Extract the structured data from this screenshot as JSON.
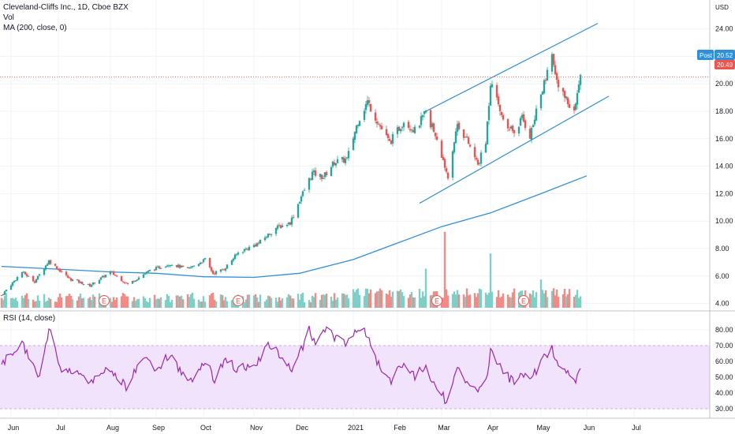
{
  "legend": {
    "main": "Cleveland-Cliffs Inc., 1D, Cboe BZX",
    "vol": "Vol",
    "ma": "MA (200, close, 0)",
    "rsi": "RSI (14, close)"
  },
  "price_axis": {
    "currency": "USD",
    "ticks": [
      "24.00",
      "22.00",
      "20.00",
      "18.00",
      "16.00",
      "14.00",
      "12.00",
      "10.00",
      "8.00",
      "6.00",
      "4.00"
    ],
    "tag_post_label": "Post",
    "tag_post_value": "20.52",
    "tag_last_value": "20.49"
  },
  "rsi_axis": {
    "ticks": [
      "80.00",
      "70.00",
      "60.00",
      "50.00",
      "40.00",
      "30.00"
    ]
  },
  "time_axis": {
    "labels": [
      "Jun",
      "Jul",
      "Aug",
      "Sep",
      "Oct",
      "Nov",
      "Dec",
      "2021",
      "Feb",
      "Mar",
      "Apr",
      "May",
      "Jun",
      "Jul"
    ]
  },
  "earnings_marker": "E",
  "colors": {
    "up": "#26a69a",
    "down": "#ef5350",
    "vol_up": "#7fcfc6",
    "vol_down": "#f28b87",
    "ma": "#2f8fd8",
    "channel": "#2f8fd8",
    "rsi": "#9c27b0",
    "rsi_band": "#f0e3fb",
    "price_tag": "#2f8fd8",
    "last_tag": "#ef5350"
  },
  "chart_data": {
    "type": "candlestick",
    "symbol": "Cleveland-Cliffs Inc.",
    "interval": "1D",
    "price_range": [
      3.3,
      24.8
    ],
    "rsi_range": [
      27,
      86
    ],
    "rsi_band": [
      30,
      70
    ],
    "last_price": 20.49,
    "post_price": 20.52,
    "anchors": [
      [
        "2020-05-26",
        4.6
      ],
      [
        "2020-06-08",
        6.3
      ],
      [
        "2020-06-16",
        5.6
      ],
      [
        "2020-06-25",
        7.1
      ],
      [
        "2020-07-08",
        5.8
      ],
      [
        "2020-07-21",
        5.3
      ],
      [
        "2020-08-03",
        6.3
      ],
      [
        "2020-08-14",
        5.4
      ],
      [
        "2020-08-28",
        6.4
      ],
      [
        "2020-09-10",
        6.9
      ],
      [
        "2020-09-21",
        6.5
      ],
      [
        "2020-10-02",
        7.2
      ],
      [
        "2020-10-07",
        6.2
      ],
      [
        "2020-10-14",
        6.5
      ],
      [
        "2020-10-23",
        7.7
      ],
      [
        "2020-11-05",
        8.4
      ],
      [
        "2020-11-16",
        9.5
      ],
      [
        "2020-11-25",
        9.9
      ],
      [
        "2020-12-02",
        11.8
      ],
      [
        "2020-12-09",
        13.5
      ],
      [
        "2020-12-16",
        13.2
      ],
      [
        "2020-12-23",
        14.3
      ],
      [
        "2020-12-31",
        14.5
      ],
      [
        "2021-01-07",
        17.3
      ],
      [
        "2021-01-13",
        18.7
      ],
      [
        "2021-01-20",
        17.1
      ],
      [
        "2021-01-27",
        15.7
      ],
      [
        "2021-02-05",
        17.3
      ],
      [
        "2021-02-12",
        16.6
      ],
      [
        "2021-02-19",
        17.9
      ],
      [
        "2021-02-24",
        16.6
      ],
      [
        "2021-03-02",
        14.3
      ],
      [
        "2021-03-05",
        13.3
      ],
      [
        "2021-03-11",
        17.1
      ],
      [
        "2021-03-17",
        15.9
      ],
      [
        "2021-03-24",
        14.1
      ],
      [
        "2021-03-29",
        15.7
      ],
      [
        "2021-04-01",
        20.1
      ],
      [
        "2021-04-08",
        17.7
      ],
      [
        "2021-04-16",
        16.4
      ],
      [
        "2021-04-21",
        17.5
      ],
      [
        "2021-04-26",
        16.2
      ],
      [
        "2021-05-03",
        19.2
      ],
      [
        "2021-05-10",
        21.9
      ],
      [
        "2021-05-14",
        19.6
      ],
      [
        "2021-05-19",
        18.9
      ],
      [
        "2021-05-24",
        17.9
      ],
      [
        "2021-05-28",
        20.49
      ]
    ],
    "moving_average_200": [
      [
        "2020-05-26",
        6.7
      ],
      [
        "2020-07-01",
        6.5
      ],
      [
        "2020-08-03",
        6.3
      ],
      [
        "2020-09-01",
        6.2
      ],
      [
        "2020-10-01",
        5.95
      ],
      [
        "2020-11-02",
        5.9
      ],
      [
        "2020-12-01",
        6.2
      ],
      [
        "2021-01-04",
        7.2
      ],
      [
        "2021-02-01",
        8.4
      ],
      [
        "2021-03-01",
        9.6
      ],
      [
        "2021-04-01",
        10.6
      ],
      [
        "2021-05-03",
        12.0
      ],
      [
        "2021-06-01",
        13.3
      ]
    ],
    "channel_upper": [
      [
        "2021-02-19",
        18.0
      ],
      [
        "2021-06-08",
        24.4
      ]
    ],
    "channel_lower": [
      [
        "2021-02-15",
        11.3
      ],
      [
        "2021-06-15",
        19.1
      ]
    ],
    "volume_spikes_millions": [
      [
        "2021-02-19",
        18
      ],
      [
        "2021-03-03",
        35
      ],
      [
        "2021-04-01",
        25
      ],
      [
        "2021-05-03",
        13
      ]
    ],
    "earnings_dates": [
      "2020-07-30",
      "2020-10-23",
      "2021-02-26",
      "2021-04-22"
    ],
    "rsi_anchors": [
      [
        "2020-05-26",
        58
      ],
      [
        "2020-06-08",
        72
      ],
      [
        "2020-06-18",
        49
      ],
      [
        "2020-06-25",
        81
      ],
      [
        "2020-07-03",
        52
      ],
      [
        "2020-07-10",
        55
      ],
      [
        "2020-07-23",
        47
      ],
      [
        "2020-08-03",
        56
      ],
      [
        "2020-08-13",
        44
      ],
      [
        "2020-08-25",
        64
      ],
      [
        "2020-09-02",
        54
      ],
      [
        "2020-09-10",
        66
      ],
      [
        "2020-09-21",
        45
      ],
      [
        "2020-10-02",
        61
      ],
      [
        "2020-10-08",
        49
      ],
      [
        "2020-10-15",
        62
      ],
      [
        "2020-10-22",
        55
      ],
      [
        "2020-11-04",
        58
      ],
      [
        "2020-11-10",
        73
      ],
      [
        "2020-11-17",
        65
      ],
      [
        "2020-11-27",
        55
      ],
      [
        "2020-12-07",
        80
      ],
      [
        "2020-12-11",
        70
      ],
      [
        "2020-12-18",
        82
      ],
      [
        "2020-12-23",
        75
      ],
      [
        "2020-12-30",
        72
      ],
      [
        "2021-01-08",
        82
      ],
      [
        "2021-01-14",
        75
      ],
      [
        "2021-01-21",
        55
      ],
      [
        "2021-01-28",
        47
      ],
      [
        "2021-02-05",
        60
      ],
      [
        "2021-02-12",
        50
      ],
      [
        "2021-02-18",
        57
      ],
      [
        "2021-02-25",
        44
      ],
      [
        "2021-03-04",
        35
      ],
      [
        "2021-03-11",
        57
      ],
      [
        "2021-03-16",
        47
      ],
      [
        "2021-03-24",
        42
      ],
      [
        "2021-03-30",
        53
      ],
      [
        "2021-04-01",
        68
      ],
      [
        "2021-04-08",
        55
      ],
      [
        "2021-04-16",
        46
      ],
      [
        "2021-04-22",
        52
      ],
      [
        "2021-04-26",
        47
      ],
      [
        "2021-05-04",
        62
      ],
      [
        "2021-05-10",
        68
      ],
      [
        "2021-05-14",
        55
      ],
      [
        "2021-05-19",
        53
      ],
      [
        "2021-05-24",
        46
      ],
      [
        "2021-05-28",
        58
      ]
    ]
  }
}
